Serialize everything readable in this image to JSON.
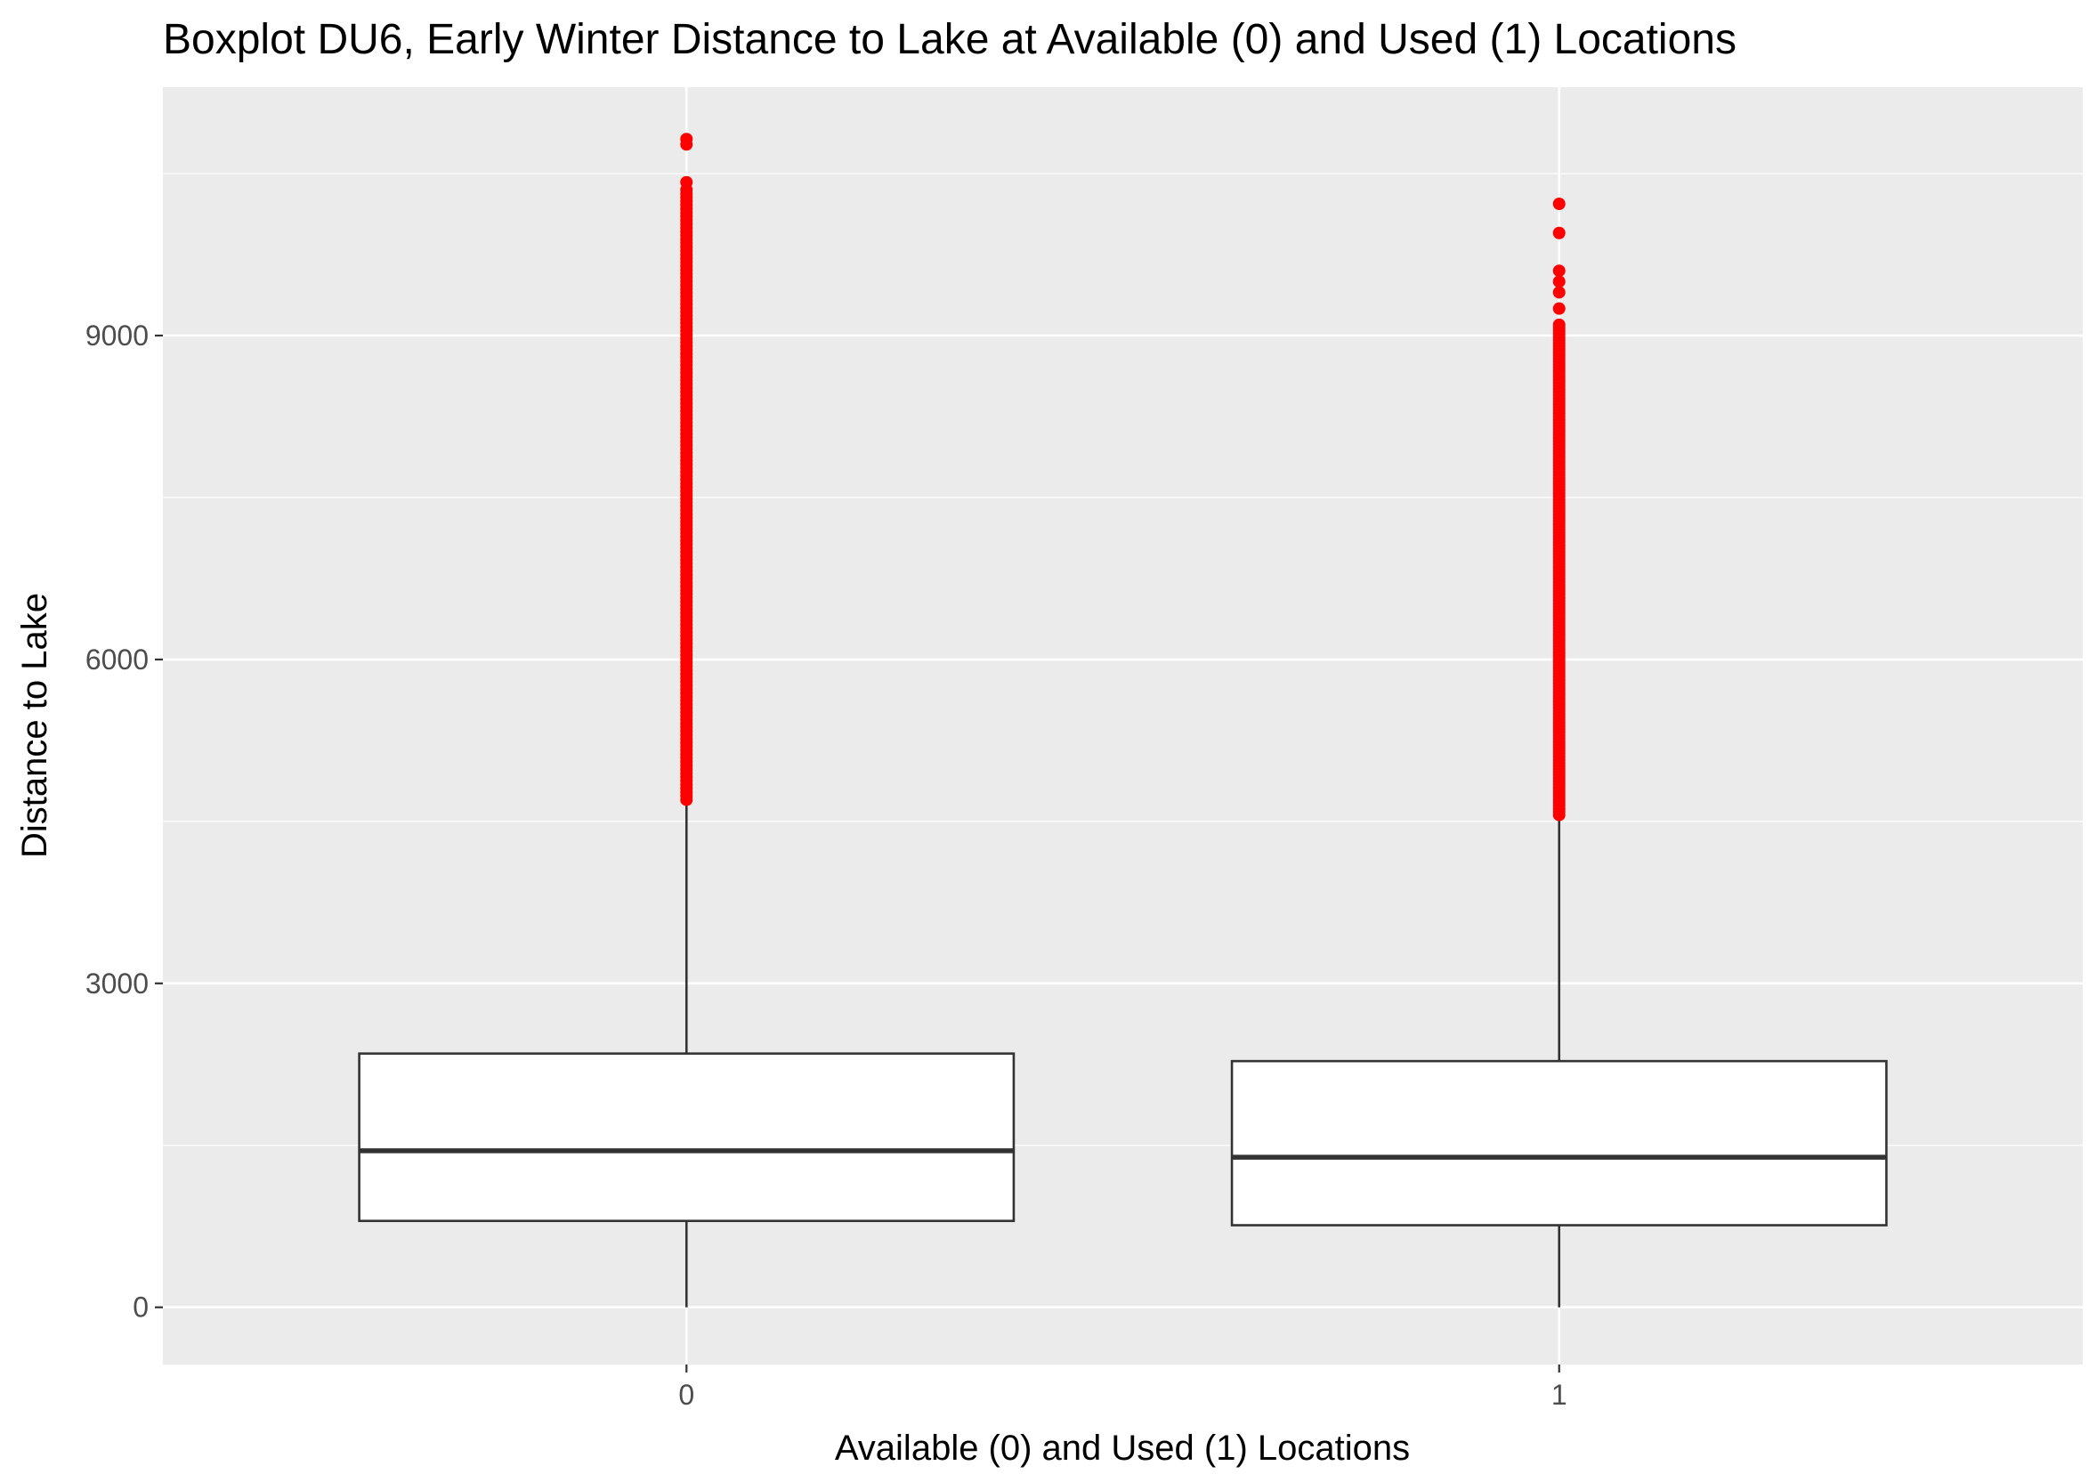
{
  "chart_data": {
    "type": "boxplot",
    "title": "Boxplot DU6, Early Winter Distance to Lake at Available (0) and Used (1) Locations",
    "xlabel": "Available (0) and Used (1) Locations",
    "ylabel": "Distance to Lake",
    "categories": [
      "0",
      "1"
    ],
    "y_ticks": [
      0,
      3000,
      6000,
      9000
    ],
    "y_tick_labels": [
      "0",
      "3000",
      "6000",
      "9000"
    ],
    "ylim": [
      -530,
      11300
    ],
    "grid": true,
    "outlier_color": "#ff0000",
    "panel_background": "#ebebeb",
    "boxes": [
      {
        "category": "0",
        "whisker_low": 0,
        "q1": 800,
        "median": 1450,
        "q3": 2350,
        "whisker_high": 4680,
        "outliers_range": [
          4700,
          10350
        ],
        "outliers_extra": [
          10420,
          10770,
          10820
        ]
      },
      {
        "category": "1",
        "whisker_low": 0,
        "q1": 760,
        "median": 1390,
        "q3": 2280,
        "whisker_high": 4550,
        "outliers_range": [
          4560,
          9100
        ],
        "outliers_extra": [
          9250,
          9400,
          9500,
          9600,
          9950,
          10220
        ]
      }
    ]
  }
}
